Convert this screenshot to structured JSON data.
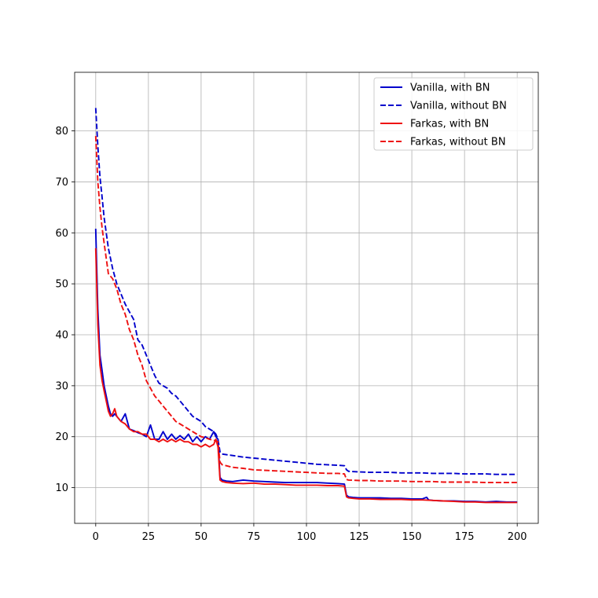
{
  "chart_data": {
    "type": "line",
    "title": "",
    "xlabel": "",
    "ylabel": "",
    "xlim": [
      -10,
      210
    ],
    "ylim": [
      3,
      91.5
    ],
    "xticks": [
      0,
      25,
      50,
      75,
      100,
      125,
      150,
      175,
      200
    ],
    "yticks": [
      10,
      20,
      30,
      40,
      50,
      60,
      70,
      80
    ],
    "grid": true,
    "legend_position": "top-right",
    "series": [
      {
        "name": "Vanilla, with BN",
        "color": "#0000cc",
        "dash": "solid",
        "x": [
          0,
          1,
          2,
          3,
          4,
          5,
          6,
          7,
          8,
          9,
          10,
          12,
          14,
          16,
          18,
          20,
          22,
          24,
          26,
          28,
          30,
          32,
          34,
          36,
          38,
          40,
          42,
          44,
          46,
          48,
          50,
          52,
          54,
          56,
          57,
          58,
          59,
          60,
          62,
          65,
          70,
          75,
          80,
          85,
          90,
          95,
          100,
          105,
          110,
          115,
          118,
          119,
          120,
          122,
          125,
          130,
          135,
          140,
          145,
          150,
          155,
          157,
          158,
          160,
          165,
          170,
          175,
          180,
          185,
          190,
          195,
          200
        ],
        "y": [
          60.8,
          45,
          36,
          33,
          30,
          28,
          26,
          24.5,
          24,
          24.5,
          24,
          23,
          24.5,
          21.5,
          21.2,
          20.8,
          20.5,
          20,
          22.3,
          19.5,
          19.5,
          21,
          19.5,
          20.5,
          19.5,
          20.2,
          19.5,
          20.5,
          19,
          20,
          19,
          20,
          19.5,
          21,
          20,
          19.5,
          12,
          11.5,
          11.3,
          11.2,
          11.5,
          11.3,
          11.2,
          11.1,
          11,
          11,
          11,
          11,
          10.9,
          10.8,
          10.7,
          8.5,
          8.2,
          8.1,
          8,
          8,
          8,
          7.9,
          7.9,
          7.8,
          7.8,
          8.1,
          7.6,
          7.5,
          7.4,
          7.4,
          7.3,
          7.3,
          7.2,
          7.3,
          7.2,
          7.2
        ]
      },
      {
        "name": "Vanilla, without BN",
        "color": "#0000cc",
        "dash": "dashed",
        "x": [
          0,
          1,
          2,
          3,
          4,
          5,
          6,
          8,
          10,
          12,
          14,
          16,
          18,
          20,
          22,
          24,
          26,
          28,
          30,
          32,
          34,
          36,
          38,
          40,
          42,
          44,
          46,
          48,
          50,
          52,
          54,
          56,
          57,
          58,
          59,
          60,
          65,
          70,
          75,
          80,
          85,
          90,
          95,
          100,
          105,
          110,
          115,
          118,
          119,
          120,
          125,
          130,
          135,
          140,
          145,
          150,
          155,
          160,
          165,
          170,
          175,
          180,
          185,
          190,
          195,
          200
        ],
        "y": [
          84.5,
          77,
          71,
          67,
          63,
          60,
          57,
          53,
          50,
          48,
          46,
          44.5,
          43,
          39,
          38,
          36,
          34,
          32,
          30.5,
          30,
          29.5,
          28.5,
          28,
          27,
          26,
          25,
          24,
          23.5,
          23,
          22,
          21.5,
          21,
          20.5,
          19.5,
          17,
          16.6,
          16.3,
          16,
          15.8,
          15.6,
          15.4,
          15.2,
          15,
          14.8,
          14.6,
          14.5,
          14.4,
          14.3,
          13.5,
          13.2,
          13.1,
          13,
          13,
          13,
          12.9,
          12.9,
          12.9,
          12.8,
          12.8,
          12.8,
          12.7,
          12.7,
          12.7,
          12.6,
          12.6,
          12.6
        ]
      },
      {
        "name": "Farkas, with BN",
        "color": "#ee1111",
        "dash": "solid",
        "x": [
          0,
          1,
          2,
          3,
          4,
          5,
          6,
          7,
          8,
          9,
          10,
          12,
          14,
          16,
          18,
          20,
          22,
          24,
          26,
          28,
          30,
          32,
          34,
          36,
          38,
          40,
          42,
          44,
          46,
          48,
          50,
          52,
          54,
          56,
          57,
          58,
          59,
          60,
          62,
          65,
          70,
          75,
          80,
          85,
          90,
          95,
          100,
          105,
          110,
          115,
          118,
          119,
          120,
          122,
          125,
          130,
          135,
          140,
          145,
          150,
          155,
          160,
          165,
          170,
          175,
          180,
          185,
          190,
          195,
          200
        ],
        "y": [
          57,
          42,
          34,
          31,
          29,
          27,
          25,
          24,
          24.5,
          25.5,
          24,
          23,
          22.5,
          21.5,
          21,
          21,
          20.5,
          20.5,
          19.5,
          19.5,
          19,
          19.5,
          19,
          19.5,
          19,
          19.5,
          19,
          19,
          18.5,
          18.5,
          18,
          18.5,
          18,
          18.5,
          19.5,
          18,
          11.5,
          11.2,
          11,
          10.9,
          10.8,
          10.9,
          10.7,
          10.7,
          10.6,
          10.5,
          10.5,
          10.5,
          10.4,
          10.4,
          10.3,
          8.2,
          8,
          7.9,
          7.8,
          7.8,
          7.7,
          7.7,
          7.7,
          7.6,
          7.6,
          7.5,
          7.4,
          7.3,
          7.2,
          7.2,
          7.1,
          7.1,
          7.1,
          7.1
        ]
      },
      {
        "name": "Farkas, without BN",
        "color": "#ee1111",
        "dash": "dashed",
        "x": [
          0,
          1,
          2,
          3,
          4,
          5,
          6,
          8,
          10,
          12,
          14,
          16,
          18,
          20,
          22,
          24,
          26,
          28,
          30,
          32,
          34,
          36,
          38,
          40,
          42,
          44,
          46,
          48,
          50,
          52,
          54,
          56,
          57,
          58,
          59,
          60,
          65,
          70,
          75,
          80,
          85,
          90,
          95,
          100,
          105,
          110,
          115,
          118,
          119,
          120,
          125,
          130,
          135,
          140,
          145,
          150,
          155,
          160,
          165,
          170,
          175,
          180,
          185,
          190,
          195,
          200
        ],
        "y": [
          79,
          70,
          65,
          61,
          58,
          55,
          52,
          51,
          49,
          46,
          44,
          41,
          39,
          36,
          34,
          31,
          29.5,
          28,
          27,
          26,
          25,
          24,
          23,
          22.5,
          22,
          21.5,
          21,
          20.5,
          20,
          19.8,
          19.5,
          19.3,
          19.2,
          19,
          15,
          14.5,
          14,
          13.8,
          13.5,
          13.4,
          13.3,
          13.2,
          13.1,
          13,
          12.9,
          12.8,
          12.8,
          12.7,
          11.6,
          11.5,
          11.4,
          11.4,
          11.3,
          11.3,
          11.3,
          11.2,
          11.2,
          11.2,
          11.1,
          11.1,
          11.1,
          11.1,
          11,
          11,
          11,
          11
        ]
      }
    ]
  }
}
